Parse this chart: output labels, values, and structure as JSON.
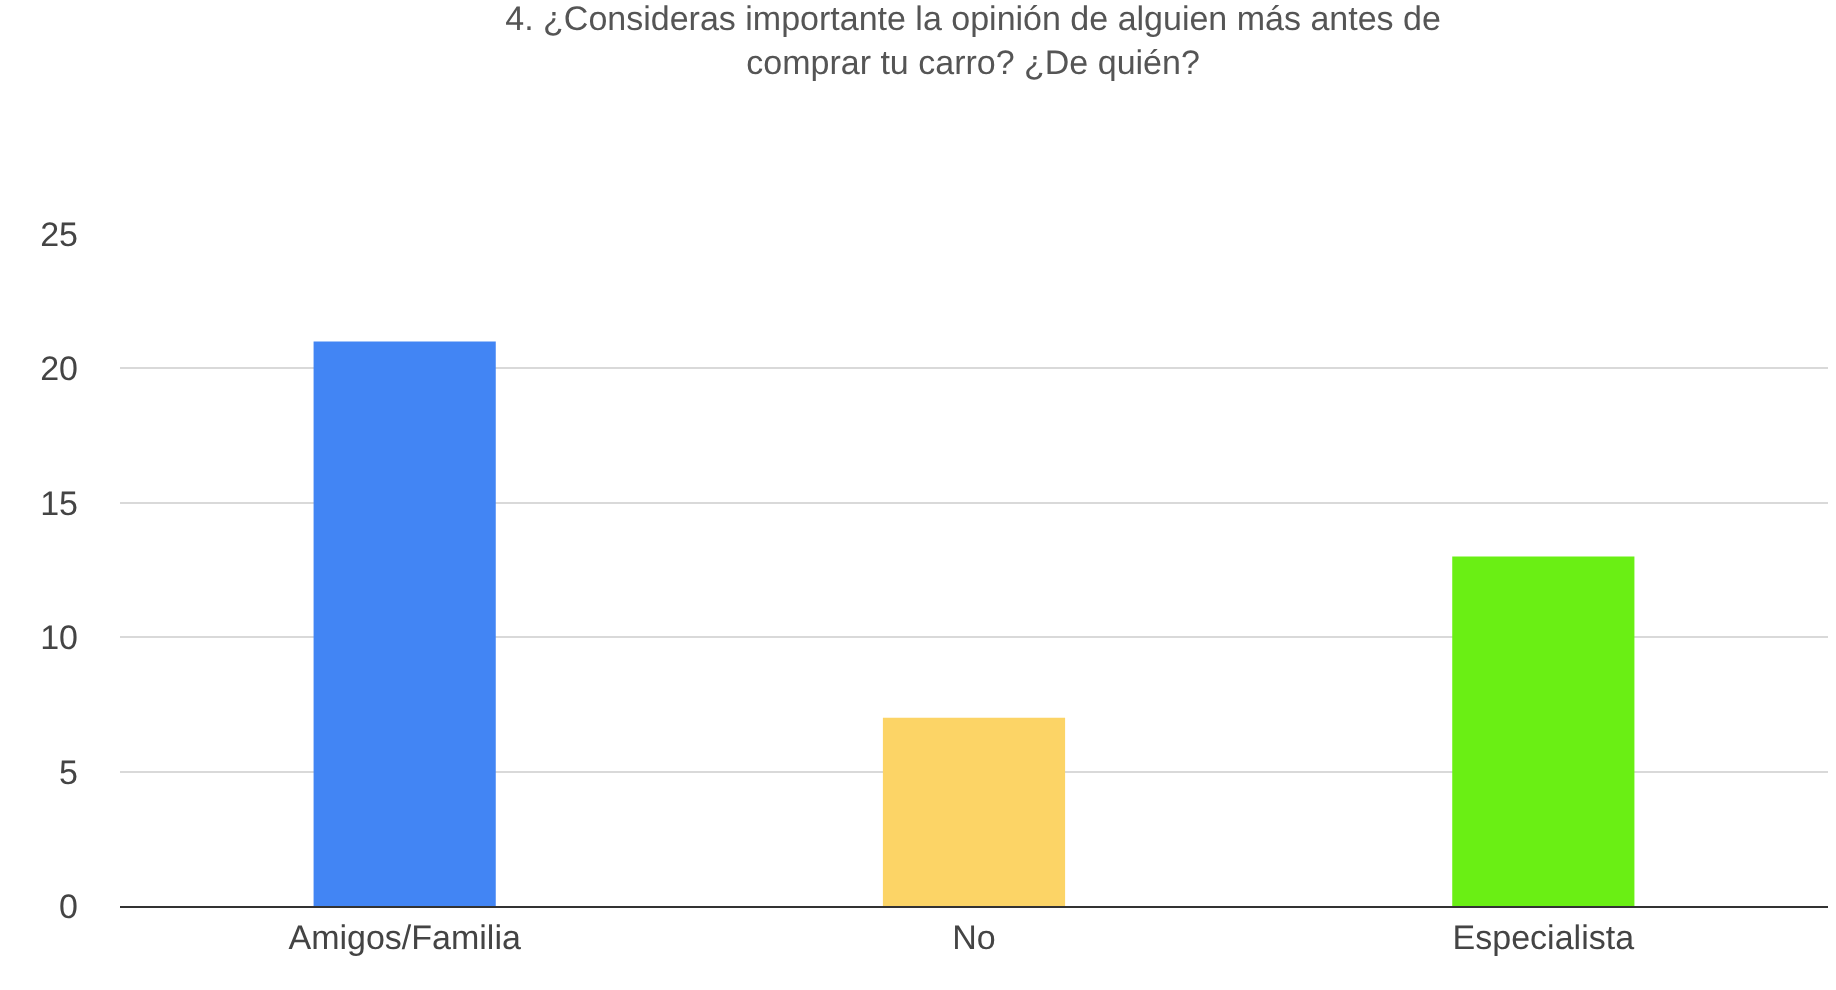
{
  "chart_data": {
    "type": "bar",
    "title": "4. ¿Consideras importante la opinión de alguien más antes de comprar tu carro? ¿De quién?",
    "categories": [
      "Amigos/Familia",
      "No",
      "Especialista"
    ],
    "values": [
      21,
      7,
      13
    ],
    "colors": [
      "#4285f4",
      "#fcd466",
      "#6aef14"
    ],
    "ylim": [
      0,
      25
    ],
    "yticks": [
      0,
      5,
      10,
      15,
      20,
      25
    ],
    "grid": "y"
  }
}
